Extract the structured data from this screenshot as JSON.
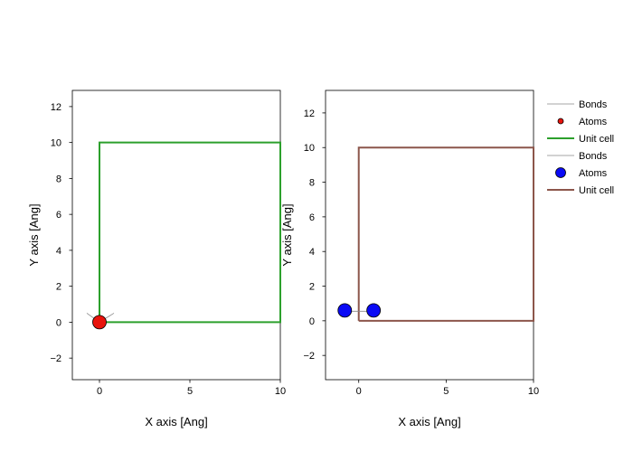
{
  "chart_data": [
    {
      "type": "scatter",
      "xlabel": "X axis [Ang]",
      "ylabel": "Y axis [Ang]",
      "xlim": [
        -1.5,
        10
      ],
      "ylim": [
        -3.2,
        12.9
      ],
      "xticks": [
        0,
        5,
        10
      ],
      "yticks": [
        -2,
        0,
        2,
        4,
        6,
        8,
        10,
        12
      ],
      "grid": false,
      "series": [
        {
          "name": "Bonds",
          "kind": "line",
          "color": "#888888",
          "segments": [
            [
              [
                0,
                0
              ],
              [
                -0.7,
                0.5
              ]
            ],
            [
              [
                0,
                0
              ],
              [
                0.8,
                0.5
              ]
            ]
          ]
        },
        {
          "name": "Atoms",
          "kind": "marker",
          "color": "#e8140c",
          "points": [
            {
              "x": 0,
              "y": 0
            }
          ]
        },
        {
          "name": "Unit cell",
          "kind": "line",
          "color": "#2ca02c",
          "path": [
            [
              0,
              0
            ],
            [
              10,
              0
            ],
            [
              10,
              10
            ],
            [
              0,
              10
            ],
            [
              0,
              0
            ]
          ]
        }
      ]
    },
    {
      "type": "scatter",
      "xlabel": "X axis [Ang]",
      "ylabel": "Y axis [Ang]",
      "xlim": [
        -1.9,
        10
      ],
      "ylim": [
        -3.4,
        13.3
      ],
      "xticks": [
        0,
        5,
        10
      ],
      "yticks": [
        -2,
        0,
        2,
        4,
        6,
        8,
        10,
        12
      ],
      "grid": false,
      "series": [
        {
          "name": "Bonds",
          "kind": "line",
          "color": "#888888",
          "segments": [
            [
              [
                -0.8,
                0.55
              ],
              [
                0.85,
                0.55
              ]
            ]
          ]
        },
        {
          "name": "Atoms",
          "kind": "marker",
          "color": "#0a0af5",
          "points": [
            {
              "x": -0.8,
              "y": 0.6
            },
            {
              "x": 0.85,
              "y": 0.6
            }
          ]
        },
        {
          "name": "Unit cell",
          "kind": "line",
          "color": "#8c564b",
          "path": [
            [
              0,
              0
            ],
            [
              10,
              0
            ],
            [
              10,
              10
            ],
            [
              0,
              10
            ],
            [
              0,
              0
            ]
          ]
        }
      ]
    }
  ],
  "legend": {
    "placement": "right",
    "entries": [
      {
        "label": "Bonds",
        "kind": "line",
        "color": "#888888"
      },
      {
        "label": "Atoms",
        "kind": "marker",
        "color": "#e8140c"
      },
      {
        "label": "Unit cell",
        "kind": "line",
        "color": "#2ca02c"
      },
      {
        "label": "Bonds",
        "kind": "line",
        "color": "#888888"
      },
      {
        "label": "Atoms",
        "kind": "marker",
        "color": "#0a0af5"
      },
      {
        "label": "Unit cell",
        "kind": "line",
        "color": "#8c564b"
      }
    ]
  }
}
